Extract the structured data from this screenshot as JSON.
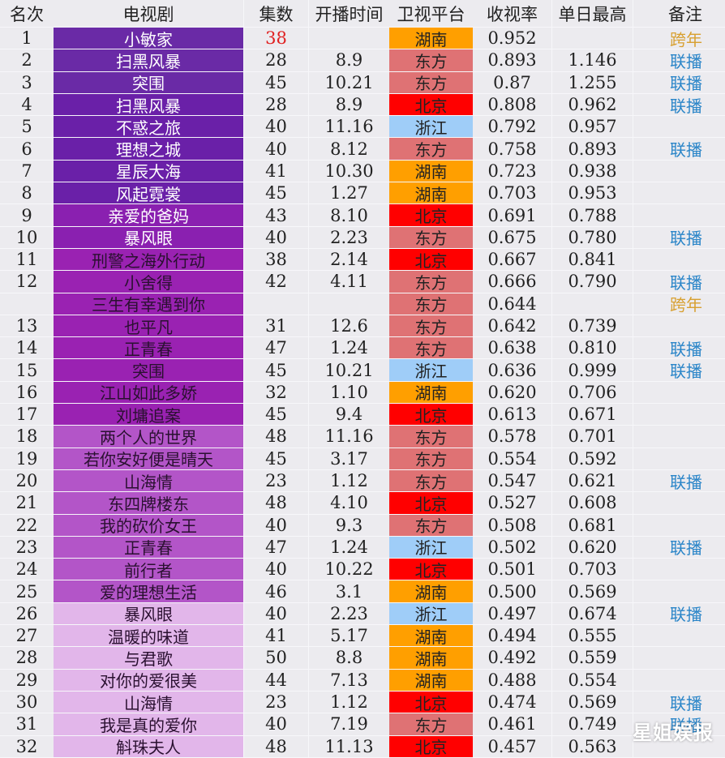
{
  "colors": {
    "background": "#ecebef",
    "platform": {
      "湖南": "#ff9f00",
      "东方": "#df7274",
      "北京": "#ff0000",
      "浙江": "#9fcdf8"
    },
    "note": {
      "联播": "#2a85c8",
      "跨年": "#d8a030"
    },
    "episodes_highlight": "#e02020"
  },
  "header": {
    "rank": "名次",
    "name": "电视剧",
    "episodes": "集数",
    "premiere": "开播时间",
    "platform": "卫视平台",
    "rating": "收视率",
    "peak": "单日最高",
    "note": "备注"
  },
  "rows": [
    {
      "rank": "1",
      "name": "小敏家",
      "episodes": "38",
      "premiere": "",
      "platform": "湖南",
      "rating": "0.952",
      "peak": "",
      "note": "跨年",
      "name_bg": "#6a2aa6",
      "episodes_red": true
    },
    {
      "rank": "2",
      "name": "扫黑风暴",
      "episodes": "28",
      "premiere": "8.9",
      "platform": "东方",
      "rating": "0.893",
      "peak": "1.146",
      "note": "联播",
      "name_bg": "#6a2aa6"
    },
    {
      "rank": "3",
      "name": "突围",
      "episodes": "45",
      "premiere": "10.21",
      "platform": "东方",
      "rating": "0.87",
      "peak": "1.255",
      "note": "联播",
      "name_bg": "#6a2aa6"
    },
    {
      "rank": "4",
      "name": "扫黑风暴",
      "episodes": "28",
      "premiere": "8.9",
      "platform": "北京",
      "rating": "0.808",
      "peak": "0.962",
      "note": "联播",
      "name_bg": "#6a20a8"
    },
    {
      "rank": "5",
      "name": "不惑之旅",
      "episodes": "40",
      "premiere": "11.16",
      "platform": "浙江",
      "rating": "0.792",
      "peak": "0.957",
      "note": "",
      "name_bg": "#6a20a8"
    },
    {
      "rank": "6",
      "name": "理想之城",
      "episodes": "40",
      "premiere": "8.12",
      "platform": "东方",
      "rating": "0.758",
      "peak": "0.893",
      "note": "联播",
      "name_bg": "#6a20a8"
    },
    {
      "rank": "7",
      "name": "星辰大海",
      "episodes": "41",
      "premiere": "10.30",
      "platform": "湖南",
      "rating": "0.723",
      "peak": "0.938",
      "note": "",
      "name_bg": "#6a20a8"
    },
    {
      "rank": "8",
      "name": "风起霓裳",
      "episodes": "45",
      "premiere": "1.27",
      "platform": "湖南",
      "rating": "0.703",
      "peak": "0.953",
      "note": "",
      "name_bg": "#6a20a8"
    },
    {
      "rank": "9",
      "name": "亲爱的爸妈",
      "episodes": "43",
      "premiere": "8.10",
      "platform": "北京",
      "rating": "0.691",
      "peak": "0.788",
      "note": "",
      "name_bg": "#8a20b0"
    },
    {
      "rank": "10",
      "name": "暴风眼",
      "episodes": "40",
      "premiere": "2.23",
      "platform": "东方",
      "rating": "0.675",
      "peak": "0.780",
      "note": "联播",
      "name_bg": "#8a20b0"
    },
    {
      "rank": "11",
      "name": "刑警之海外行动",
      "episodes": "38",
      "premiere": "2.14",
      "platform": "北京",
      "rating": "0.667",
      "peak": "0.841",
      "note": "",
      "name_bg": "#9a22b2",
      "dark": true
    },
    {
      "rank": "12",
      "name": "小舍得",
      "episodes": "42",
      "premiere": "4.11",
      "platform": "东方",
      "rating": "0.666",
      "peak": "0.790",
      "note": "联播",
      "name_bg": "#9a22b2",
      "dark": true
    },
    {
      "rank": "",
      "name": "三生有幸遇到你",
      "episodes": "",
      "premiere": "",
      "platform": "东方",
      "rating": "0.644",
      "peak": "",
      "note": "跨年",
      "name_bg": "#9a22b2",
      "dark": true
    },
    {
      "rank": "13",
      "name": "也平凡",
      "episodes": "31",
      "premiere": "12.6",
      "platform": "东方",
      "rating": "0.642",
      "peak": "0.739",
      "note": "",
      "name_bg": "#9a22b2",
      "dark": true
    },
    {
      "rank": "14",
      "name": "正青春",
      "episodes": "47",
      "premiere": "1.24",
      "platform": "东方",
      "rating": "0.638",
      "peak": "0.810",
      "note": "联播",
      "name_bg": "#9a22b2",
      "dark": true
    },
    {
      "rank": "15",
      "name": "突围",
      "episodes": "45",
      "premiere": "10.21",
      "platform": "浙江",
      "rating": "0.636",
      "peak": "0.999",
      "note": "联播",
      "name_bg": "#9a22b2",
      "dark": true
    },
    {
      "rank": "16",
      "name": "江山如此多娇",
      "episodes": "32",
      "premiere": "1.10",
      "platform": "湖南",
      "rating": "0.620",
      "peak": "0.706",
      "note": "",
      "name_bg": "#9a22b2",
      "dark": true
    },
    {
      "rank": "17",
      "name": "刘墉追案",
      "episodes": "45",
      "premiere": "9.4",
      "platform": "北京",
      "rating": "0.613",
      "peak": "0.671",
      "note": "",
      "name_bg": "#9a22b2",
      "dark": true
    },
    {
      "rank": "18",
      "name": "两个人的世界",
      "episodes": "48",
      "premiere": "11.16",
      "platform": "东方",
      "rating": "0.578",
      "peak": "0.701",
      "note": "",
      "name_bg": "#b355c8",
      "dark": true
    },
    {
      "rank": "19",
      "name": "若你安好便是晴天",
      "episodes": "45",
      "premiere": "3.17",
      "platform": "东方",
      "rating": "0.554",
      "peak": "0.592",
      "note": "",
      "name_bg": "#b355c8",
      "dark": true
    },
    {
      "rank": "20",
      "name": "山海情",
      "episodes": "23",
      "premiere": "1.12",
      "platform": "东方",
      "rating": "0.547",
      "peak": "0.621",
      "note": "联播",
      "name_bg": "#b355c8",
      "dark": true
    },
    {
      "rank": "21",
      "name": "东四牌楼东",
      "episodes": "48",
      "premiere": "4.10",
      "platform": "北京",
      "rating": "0.527",
      "peak": "0.608",
      "note": "",
      "name_bg": "#b355c8",
      "dark": true
    },
    {
      "rank": "22",
      "name": "我的砍价女王",
      "episodes": "40",
      "premiere": "9.3",
      "platform": "东方",
      "rating": "0.508",
      "peak": "0.681",
      "note": "",
      "name_bg": "#b355c8",
      "dark": true
    },
    {
      "rank": "23",
      "name": "正青春",
      "episodes": "47",
      "premiere": "1.24",
      "platform": "浙江",
      "rating": "0.502",
      "peak": "0.620",
      "note": "联播",
      "name_bg": "#b355c8",
      "dark": true
    },
    {
      "rank": "24",
      "name": "前行者",
      "episodes": "40",
      "premiere": "10.22",
      "platform": "北京",
      "rating": "0.501",
      "peak": "0.703",
      "note": "",
      "name_bg": "#b355c8",
      "dark": true
    },
    {
      "rank": "25",
      "name": "爱的理想生活",
      "episodes": "46",
      "premiere": "3.1",
      "platform": "湖南",
      "rating": "0.500",
      "peak": "0.569",
      "note": "",
      "name_bg": "#b355c8",
      "dark": true
    },
    {
      "rank": "26",
      "name": "暴风眼",
      "episodes": "40",
      "premiere": "2.23",
      "platform": "浙江",
      "rating": "0.497",
      "peak": "0.674",
      "note": "联播",
      "name_bg": "#e2b6ea",
      "dark": true
    },
    {
      "rank": "27",
      "name": "温暖的味道",
      "episodes": "41",
      "premiere": "5.17",
      "platform": "湖南",
      "rating": "0.494",
      "peak": "0.555",
      "note": "",
      "name_bg": "#e2b6ea",
      "dark": true
    },
    {
      "rank": "28",
      "name": "与君歌",
      "episodes": "50",
      "premiere": "8.8",
      "platform": "湖南",
      "rating": "0.492",
      "peak": "0.559",
      "note": "",
      "name_bg": "#e2b6ea",
      "dark": true
    },
    {
      "rank": "29",
      "name": "对你的爱很美",
      "episodes": "44",
      "premiere": "7.13",
      "platform": "湖南",
      "rating": "0.488",
      "peak": "0.554",
      "note": "",
      "name_bg": "#e2b6ea",
      "dark": true
    },
    {
      "rank": "30",
      "name": "山海情",
      "episodes": "23",
      "premiere": "1.12",
      "platform": "北京",
      "rating": "0.474",
      "peak": "0.569",
      "note": "联播",
      "name_bg": "#e2b6ea",
      "dark": true
    },
    {
      "rank": "31",
      "name": "我是真的爱你",
      "episodes": "40",
      "premiere": "7.19",
      "platform": "东方",
      "rating": "0.461",
      "peak": "0.749",
      "note": "联播",
      "name_bg": "#e2b6ea",
      "dark": true
    },
    {
      "rank": "32",
      "name": "斛珠夫人",
      "episodes": "48",
      "premiere": "11.13",
      "platform": "北京",
      "rating": "0.457",
      "peak": "0.563",
      "note": "",
      "name_bg": "#e2b6ea",
      "dark": true
    }
  ],
  "watermark": "星姐娱报"
}
